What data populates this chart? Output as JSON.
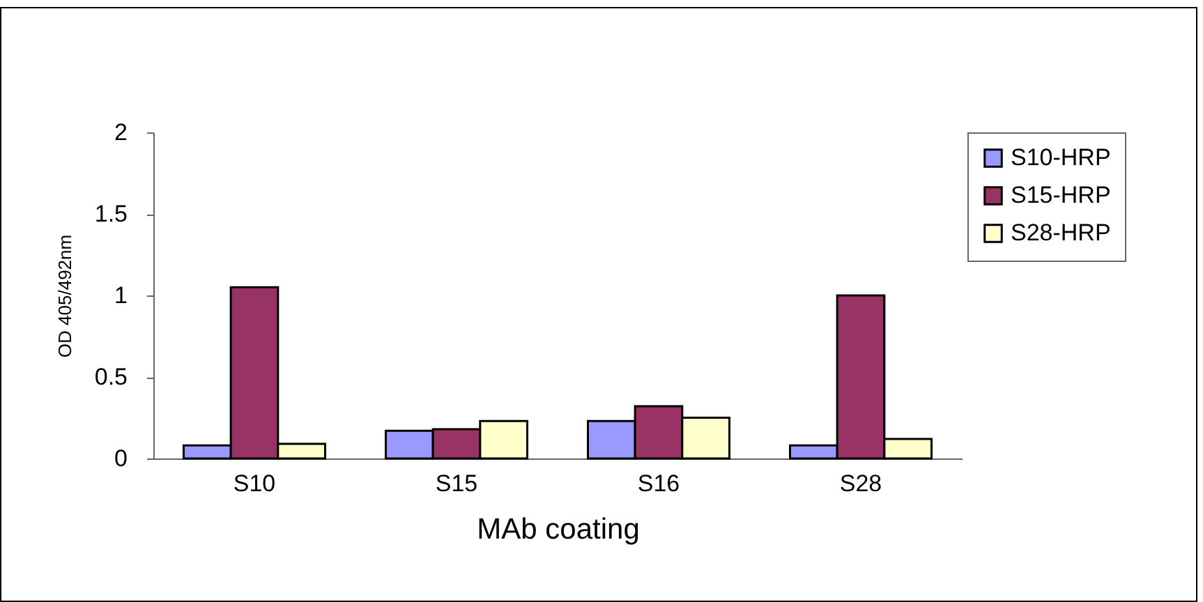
{
  "chart_data": {
    "type": "bar",
    "xlabel": "MAb coating",
    "ylabel": "OD 405/492nm",
    "categories": [
      "S10",
      "S15",
      "S16",
      "S28"
    ],
    "series": [
      {
        "name": "S10-HRP",
        "color": "#9999ff",
        "values": [
          0.08,
          0.17,
          0.23,
          0.08
        ]
      },
      {
        "name": "S15-HRP",
        "color": "#993366",
        "values": [
          1.05,
          0.18,
          0.32,
          1.0
        ]
      },
      {
        "name": "S28-HRP",
        "color": "#ffffcc",
        "values": [
          0.09,
          0.23,
          0.25,
          0.12
        ]
      }
    ],
    "ylim": [
      0,
      2
    ],
    "yticks": [
      0,
      0.5,
      1,
      1.5,
      2
    ],
    "grid": false,
    "legend": "right"
  }
}
